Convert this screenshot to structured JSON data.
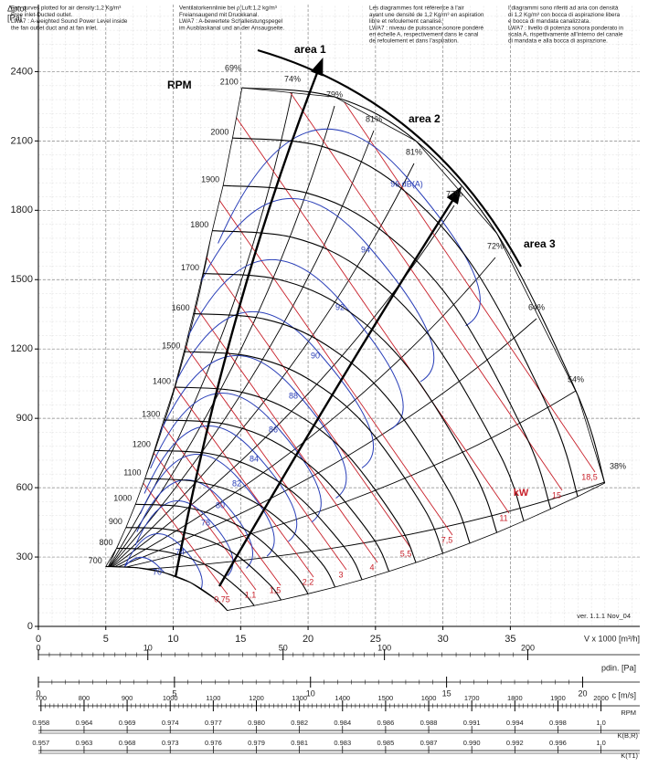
{
  "chart_data": {
    "type": "line",
    "notes": [
      [
        "Fan curves plotted for air density:1,2 Kg/m³",
        "Free inlet-Ducted outlet.",
        "LWA7 : A-weighted Sound Power Level inside",
        "the fan outlet duct and at fan inlet."
      ],
      [
        "Ventilatorkennlinie bei ρ Luft:1,2 kg/m³",
        "Freiansaugend mit Druckkanal.",
        "LWA7 : A-bewertete Schalleistungspegel",
        "im Ausblaskanal und an der Ansaugseite."
      ],
      [
        "Les diagrammes font référence à l'air",
        "ayant une densité de 1,2 Kg/m³ en aspiration",
        "libre et refoulement canalisé.",
        "LWA7 : niveau de puissance sonore pondéré",
        "en échelle A, respectivement dans le canal",
        "de refoulement et dans l'aspiration."
      ],
      [
        "I diagrammi sono riferiti ad aria con densità",
        "di 1,2 Kg/m³ con bocca di aspirazione libera",
        "e bocca di mandata canalizzata.",
        "LWA7 : livello di potenza sonora ponderato in",
        "scala A, rispettivamente all'interno del canale",
        "di mandata e alla bocca di aspirazione."
      ]
    ],
    "y_label": "Δptot",
    "y_unit": "[Pa]",
    "x_label": "V x 1000 [m³/h]",
    "rpm_label": "RPM",
    "version": "ver. 1.1.1 Nov_04",
    "areas": [
      "area 1",
      "area 2",
      "area 3"
    ],
    "xlim": [
      0,
      44.6
    ],
    "ylim": [
      0,
      2690
    ],
    "xticks": [
      0,
      5,
      10,
      15,
      20,
      25,
      30,
      35
    ],
    "yticks": [
      0,
      300,
      600,
      900,
      1200,
      1500,
      1800,
      2100,
      2400
    ],
    "grid": true,
    "color": "#000000",
    "series": [
      {
        "name": "700",
        "x": [
          5.0,
          7.3,
          9.3,
          11.3,
          13.3,
          14.0
        ],
        "values": [
          259,
          254,
          233,
          189,
          111,
          69
        ]
      },
      {
        "name": "800",
        "x": [
          5.8,
          8.4,
          10.7,
          13.0,
          15.2,
          16.0
        ],
        "values": [
          338,
          332,
          305,
          247,
          145,
          90
        ]
      },
      {
        "name": "900",
        "x": [
          6.5,
          9.4,
          12.0,
          14.6,
          17.1,
          18.0
        ],
        "values": [
          428,
          421,
          386,
          312,
          184,
          114
        ]
      },
      {
        "name": "1000",
        "x": [
          7.2,
          10.5,
          13.3,
          16.2,
          19.0,
          20.0
        ],
        "values": [
          528,
          519,
          476,
          386,
          227,
          141
        ]
      },
      {
        "name": "1100",
        "x": [
          7.9,
          11.5,
          14.7,
          17.8,
          21.0,
          22.0
        ],
        "values": [
          639,
          628,
          576,
          466,
          274,
          170
        ]
      },
      {
        "name": "1200",
        "x": [
          8.6,
          12.6,
          16.0,
          19.4,
          22.9,
          24.0
        ],
        "values": [
          761,
          748,
          686,
          555,
          327,
          202
        ]
      },
      {
        "name": "1300",
        "x": [
          9.3,
          13.6,
          17.3,
          21.0,
          24.8,
          26.0
        ],
        "values": [
          893,
          878,
          805,
          651,
          383,
          238
        ]
      },
      {
        "name": "1400",
        "x": [
          10.1,
          14.7,
          18.7,
          22.7,
          26.7,
          28.0
        ],
        "values": [
          1035,
          1018,
          933,
          756,
          444,
          276
        ]
      },
      {
        "name": "1500",
        "x": [
          10.8,
          15.7,
          20.0,
          24.3,
          28.6,
          30.0
        ],
        "values": [
          1189,
          1168,
          1071,
          867,
          510,
          316
        ]
      },
      {
        "name": "1600",
        "x": [
          11.5,
          16.8,
          21.3,
          25.9,
          30.5,
          32.0
        ],
        "values": [
          1353,
          1329,
          1219,
          987,
          581,
          360
        ]
      },
      {
        "name": "1700",
        "x": [
          12.2,
          17.8,
          22.7,
          27.5,
          32.4,
          34.0
        ],
        "values": [
          1527,
          1501,
          1376,
          1114,
          655,
          406
        ]
      },
      {
        "name": "1800",
        "x": [
          12.9,
          18.9,
          24.0,
          29.1,
          34.3,
          36.0
        ],
        "values": [
          1712,
          1682,
          1543,
          1249,
          735,
          456
        ]
      },
      {
        "name": "1900",
        "x": [
          13.7,
          19.9,
          25.3,
          30.8,
          36.2,
          38.0
        ],
        "values": [
          1907,
          1875,
          1719,
          1392,
          819,
          508
        ]
      },
      {
        "name": "2000",
        "x": [
          14.4,
          21.0,
          26.7,
          32.4,
          38.1,
          40.0
        ],
        "values": [
          2113,
          2077,
          1905,
          1542,
          907,
          562
        ]
      },
      {
        "name": "2100",
        "x": [
          15.1,
          22.0,
          28.0,
          34.0,
          40.0,
          42.0
        ],
        "values": [
          2330,
          2290,
          2100,
          1700,
          1000,
          620
        ]
      }
    ],
    "efficiency_labels": [
      "69%",
      "74%",
      "79%",
      "81%",
      "81%",
      "77%",
      "72%",
      "64%",
      "54%",
      "38%"
    ],
    "db_labels": [
      "70",
      "74",
      "78",
      "80",
      "82",
      "84",
      "86",
      "88",
      "90",
      "92",
      "94",
      "96 dB(A)"
    ],
    "kw_labels": [
      "0,75",
      "1,1",
      "1,5",
      "2,2",
      "3",
      "4",
      "5,5",
      "7,5",
      "11",
      "15",
      "18,5"
    ],
    "kw_unit": "kW",
    "scales": [
      {
        "label": "pdin. [Pa]",
        "scale": "sqrt",
        "lim": [
          0,
          302
        ],
        "ticks": [
          0,
          10,
          50,
          100,
          200
        ]
      },
      {
        "label": "c [m/s]",
        "scale": "linear",
        "lim": [
          0,
          22.1
        ],
        "ticks": [
          0,
          5,
          10,
          15,
          20
        ]
      },
      {
        "label": "RPM",
        "scale": "linear",
        "lim": [
          694,
          2090
        ],
        "ticks": [
          700,
          800,
          900,
          1000,
          1100,
          1200,
          1300,
          1400,
          1500,
          1600,
          1700,
          1800,
          1900,
          2000
        ]
      }
    ],
    "k_rows": [
      {
        "label": "K(B,R)",
        "values": [
          "0.958",
          "0.964",
          "0.969",
          "0.974",
          "0.977",
          "0.980",
          "0.982",
          "0.984",
          "0.986",
          "0.988",
          "0.991",
          "0.994",
          "0.998",
          "1,0"
        ]
      },
      {
        "label": "K(T1)",
        "values": [
          "0.957",
          "0.963",
          "0.968",
          "0.973",
          "0.976",
          "0.979",
          "0.981",
          "0.983",
          "0.985",
          "0.987",
          "0.990",
          "0.992",
          "0.996",
          "1,0"
        ]
      }
    ]
  }
}
